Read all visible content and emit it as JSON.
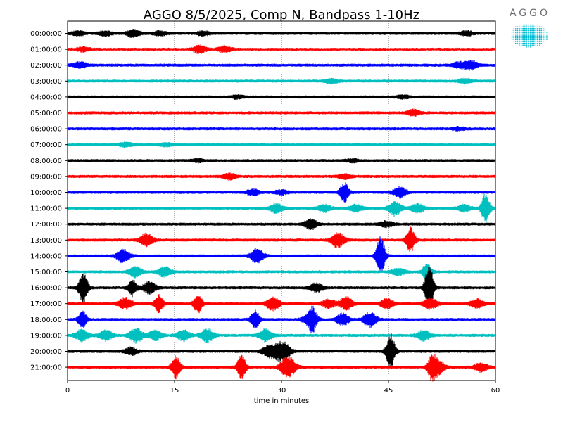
{
  "chart_data": {
    "type": "line",
    "title": "AGGO 8/5/2025, Comp N, Bandpass 1-10Hz",
    "xlabel": "time in minutes",
    "ylabel": "",
    "xlim": [
      0,
      60
    ],
    "x_ticks": [
      0,
      15,
      30,
      45,
      60
    ],
    "x_tick_labels": [
      "0",
      "15",
      "30",
      "45",
      "60"
    ],
    "vertical_gridlines_at": [
      15,
      30,
      45
    ],
    "grid_style": "dotted",
    "trace_colors": [
      "#000000",
      "#ff0000",
      "#0000ff",
      "#00bfbf"
    ],
    "traces": [
      {
        "label": "00:00:00",
        "color": "#000000",
        "events": [
          [
            1.5,
            3
          ],
          [
            5.3,
            3
          ],
          [
            9.2,
            5
          ],
          [
            13,
            3
          ],
          [
            19,
            3
          ],
          [
            56,
            3
          ]
        ]
      },
      {
        "label": "01:00:00",
        "color": "#ff0000",
        "events": [
          [
            2.2,
            3
          ],
          [
            18.5,
            5
          ],
          [
            22,
            4
          ]
        ]
      },
      {
        "label": "02:00:00",
        "color": "#0000ff",
        "events": [
          [
            1.8,
            4
          ],
          [
            54.9,
            4
          ],
          [
            56.6,
            6
          ]
        ]
      },
      {
        "label": "03:00:00",
        "color": "#00bfbf",
        "events": [
          [
            37,
            3
          ],
          [
            55.8,
            3
          ]
        ]
      },
      {
        "label": "04:00:00",
        "color": "#000000",
        "events": [
          [
            23.8,
            2
          ],
          [
            47,
            2
          ]
        ]
      },
      {
        "label": "05:00:00",
        "color": "#ff0000",
        "events": [
          [
            48.5,
            4
          ]
        ]
      },
      {
        "label": "06:00:00",
        "color": "#0000ff",
        "events": [
          [
            54.8,
            2
          ]
        ]
      },
      {
        "label": "07:00:00",
        "color": "#00bfbf",
        "events": [
          [
            8.2,
            3
          ],
          [
            13.8,
            2
          ]
        ]
      },
      {
        "label": "08:00:00",
        "color": "#000000",
        "events": [
          [
            18.2,
            2
          ],
          [
            40,
            2
          ]
        ]
      },
      {
        "label": "09:00:00",
        "color": "#ff0000",
        "events": [
          [
            22.7,
            4
          ],
          [
            38.8,
            3
          ]
        ]
      },
      {
        "label": "10:00:00",
        "color": "#0000ff",
        "events": [
          [
            26,
            4
          ],
          [
            30,
            3
          ],
          [
            38.8,
            14
          ],
          [
            46.6,
            7
          ]
        ]
      },
      {
        "label": "11:00:00",
        "color": "#00bfbf",
        "events": [
          [
            29.3,
            6
          ],
          [
            36,
            5
          ],
          [
            40.5,
            5
          ],
          [
            45.9,
            10
          ],
          [
            49.1,
            6
          ],
          [
            55.6,
            5
          ],
          [
            58.6,
            20
          ]
        ]
      },
      {
        "label": "12:00:00",
        "color": "#000000",
        "events": [
          [
            34.1,
            7
          ],
          [
            44.7,
            4
          ]
        ]
      },
      {
        "label": "13:00:00",
        "color": "#ff0000",
        "events": [
          [
            11.1,
            9
          ],
          [
            37.9,
            10
          ],
          [
            48.1,
            17
          ]
        ]
      },
      {
        "label": "14:00:00",
        "color": "#0000ff",
        "events": [
          [
            7.8,
            9
          ],
          [
            26.6,
            10
          ],
          [
            43.9,
            26
          ]
        ]
      },
      {
        "label": "15:00:00",
        "color": "#00bfbf",
        "events": [
          [
            9.5,
            7
          ],
          [
            13.6,
            7
          ],
          [
            46.4,
            5
          ],
          [
            50.4,
            12
          ]
        ]
      },
      {
        "label": "16:00:00",
        "color": "#000000",
        "events": [
          [
            2.2,
            22
          ],
          [
            9.1,
            11
          ],
          [
            11.5,
            8
          ],
          [
            34.9,
            6
          ],
          [
            50.7,
            32
          ]
        ]
      },
      {
        "label": "17:00:00",
        "color": "#ff0000",
        "events": [
          [
            8.1,
            8
          ],
          [
            12.8,
            12
          ],
          [
            18.3,
            13
          ],
          [
            28.8,
            9
          ],
          [
            36.6,
            6
          ],
          [
            39.1,
            9
          ],
          [
            44.8,
            7
          ],
          [
            50.9,
            8
          ],
          [
            57.4,
            6
          ]
        ]
      },
      {
        "label": "18:00:00",
        "color": "#0000ff",
        "events": [
          [
            2.1,
            12
          ],
          [
            26.3,
            12
          ],
          [
            33.9,
            8
          ],
          [
            34.4,
            12
          ],
          [
            38.6,
            8
          ],
          [
            42.4,
            10
          ]
        ]
      },
      {
        "label": "19:00:00",
        "color": "#00bfbf",
        "events": [
          [
            2,
            8
          ],
          [
            5.4,
            7
          ],
          [
            9.6,
            10
          ],
          [
            12.3,
            7
          ],
          [
            16.3,
            7
          ],
          [
            19.6,
            9
          ],
          [
            27.8,
            9
          ],
          [
            49.9,
            7
          ]
        ]
      },
      {
        "label": "20:00:00",
        "color": "#000000",
        "events": [
          [
            8.9,
            5
          ],
          [
            28.1,
            7
          ],
          [
            29.5,
            9
          ],
          [
            30.5,
            9
          ],
          [
            45.3,
            24
          ]
        ]
      },
      {
        "label": "21:00:00",
        "color": "#ff0000",
        "events": [
          [
            15.2,
            15
          ],
          [
            24.4,
            16
          ],
          [
            30.6,
            9
          ],
          [
            31.3,
            8
          ],
          [
            51.1,
            16
          ],
          [
            52,
            9
          ],
          [
            58,
            6
          ]
        ]
      }
    ]
  },
  "logo": {
    "text": "AGGO",
    "color": "#00bcd4"
  }
}
